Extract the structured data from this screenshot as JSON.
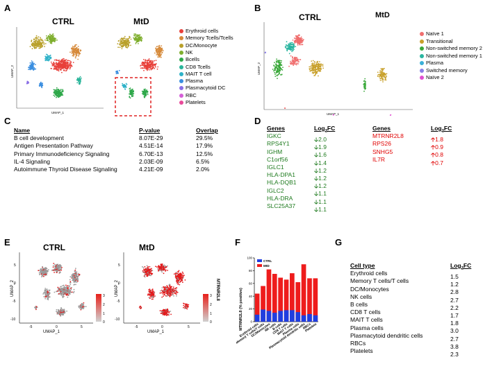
{
  "panels": {
    "a": "A",
    "b": "B",
    "c": "C",
    "d": "D",
    "e": "E",
    "f": "F",
    "g": "G"
  },
  "panel_a": {
    "titles": [
      "CTRL",
      "MtD"
    ],
    "xlabel": "UMAP_1",
    "ylabel": "UMAP_2",
    "legend": [
      {
        "label": "Erythroid cells",
        "color": "#e8403a"
      },
      {
        "label": "Memory Tcells/Tcells",
        "color": "#d68a3a"
      },
      {
        "label": "DC/Monocyte",
        "color": "#b9a02a"
      },
      {
        "label": "NK",
        "color": "#7fae2e"
      },
      {
        "label": "Bcells",
        "color": "#2ea84a"
      },
      {
        "label": "CD8 Tcells",
        "color": "#2ab59a"
      },
      {
        "label": "MAIT T cell",
        "color": "#2fb2c8"
      },
      {
        "label": "Plasma",
        "color": "#3a8ee0"
      },
      {
        "label": "Plasmacytoid DC",
        "color": "#8a6ee6"
      },
      {
        "label": "RBC",
        "color": "#d55fd8"
      },
      {
        "label": "Platelets",
        "color": "#e84a9a"
      }
    ]
  },
  "panel_b": {
    "titles": [
      "CTRL",
      "MtD"
    ],
    "xlabel": "UMAP_1",
    "ylabel": "UMAP_2",
    "legend": [
      {
        "label": "Naïve 1",
        "color": "#f06e6e"
      },
      {
        "label": "Transitional",
        "color": "#c8a02a"
      },
      {
        "label": "Non-switched memory 2",
        "color": "#3aa83a"
      },
      {
        "label": "Non-switched memory 1",
        "color": "#2ab5a0"
      },
      {
        "label": "Plasma",
        "color": "#3ab0d8"
      },
      {
        "label": "Switched memory",
        "color": "#8a7ee6"
      },
      {
        "label": "Naïve 2",
        "color": "#e050d0"
      }
    ]
  },
  "panel_c": {
    "headers": [
      "Name",
      "P-value",
      "Overlap"
    ],
    "rows": [
      [
        "B cell development",
        "8.07E-29",
        "29.5%"
      ],
      [
        "Antigen Presentation Pathway",
        "4.51E-14",
        "17.9%"
      ],
      [
        "Primary Immunodeficiency Signaling",
        "6.70E-13",
        "12.5%"
      ],
      [
        "IL-4 Signaling",
        "2.03E-09",
        "6.5%"
      ],
      [
        "Autoimmune Thyroid Disease Signaling",
        "4.21E-09",
        "2.0%"
      ]
    ]
  },
  "panel_d": {
    "header_genes": "Genes",
    "header_fc": "Log",
    "header_fc_sub": "2",
    "header_fc_tail": "FC",
    "down_arrow": "🡣",
    "up_arrow": "🡡",
    "down": [
      [
        "IGKC",
        "2.0"
      ],
      [
        "RPS4Y1",
        "1.9"
      ],
      [
        "IGHM",
        "1.6"
      ],
      [
        "C1orf56",
        "1.4"
      ],
      [
        "IGLC1",
        "1.2"
      ],
      [
        "HLA-DPA1",
        "1.2"
      ],
      [
        "HLA-DQB1",
        "1.2"
      ],
      [
        "IGLC2",
        "1.1"
      ],
      [
        "HLA-DRA",
        "1.1"
      ],
      [
        "SLC25A37",
        "1.1"
      ]
    ],
    "up": [
      [
        "MTRNR2L8",
        "1.8"
      ],
      [
        "RPS26",
        "0.9"
      ],
      [
        "SNHG5",
        "0.8"
      ],
      [
        "IL7R",
        "0.7"
      ]
    ]
  },
  "panel_e": {
    "titles": [
      "CTRL",
      "MtD"
    ],
    "xlabel": "UMAP_1",
    "ylabel": "UMAP_2",
    "gene_label": "MTRNR2L8",
    "scale_ticks": [
      "3",
      "2",
      "1",
      "0"
    ],
    "axis_ticks_x": [
      "-5",
      "0",
      "5"
    ],
    "axis_ticks_y": [
      "5",
      "0",
      "-5",
      "-10"
    ]
  },
  "chart_data": {
    "type": "bar",
    "ylabel": "MTRNR2L8 (% positive)",
    "ylim": [
      0,
      100
    ],
    "yticks": [
      0,
      20,
      40,
      60,
      80,
      100
    ],
    "legend": [
      {
        "name": "CTRL",
        "color": "#1f3ee0"
      },
      {
        "name": "MtD",
        "color": "#ee1c1c"
      }
    ],
    "categories": [
      "Erythroid cells",
      "Memory T cells/T cells",
      "DC/Monocytes",
      "NK cells",
      "B cells",
      "CD8 T cells",
      "MAIT T cells",
      "Plasma cells",
      "Plasmacytoid dendritic cells",
      "RBCs",
      "Platelets"
    ],
    "series": [
      {
        "name": "CTRL",
        "values": [
          11,
          19,
          17,
          14,
          17,
          18,
          18,
          15,
          10,
          12,
          10
        ]
      },
      {
        "name": "MtD",
        "values": [
          44,
          56,
          82,
          75,
          69,
          66,
          76,
          62,
          90,
          68,
          68
        ]
      }
    ]
  },
  "panel_g": {
    "header_type": "Cell type",
    "header_fc": "Log",
    "header_fc_sub": "2",
    "header_fc_tail": "FC",
    "rows": [
      [
        "Erythroid cells",
        "1.5"
      ],
      [
        "Memory T cells/T cells",
        "1.2"
      ],
      [
        "DC/Monocytes",
        "2.8"
      ],
      [
        "NK cells",
        "2.7"
      ],
      [
        "B cells",
        "2.2"
      ],
      [
        "CD8 T cells",
        "1.7"
      ],
      [
        "MAIT T cells",
        "1.8"
      ],
      [
        "Plasma cells",
        "3.0"
      ],
      [
        "Plasmacytoid dendritic cells",
        "2.7"
      ],
      [
        "RBCs",
        "3.8"
      ],
      [
        "Platelets",
        "2.3"
      ]
    ]
  }
}
